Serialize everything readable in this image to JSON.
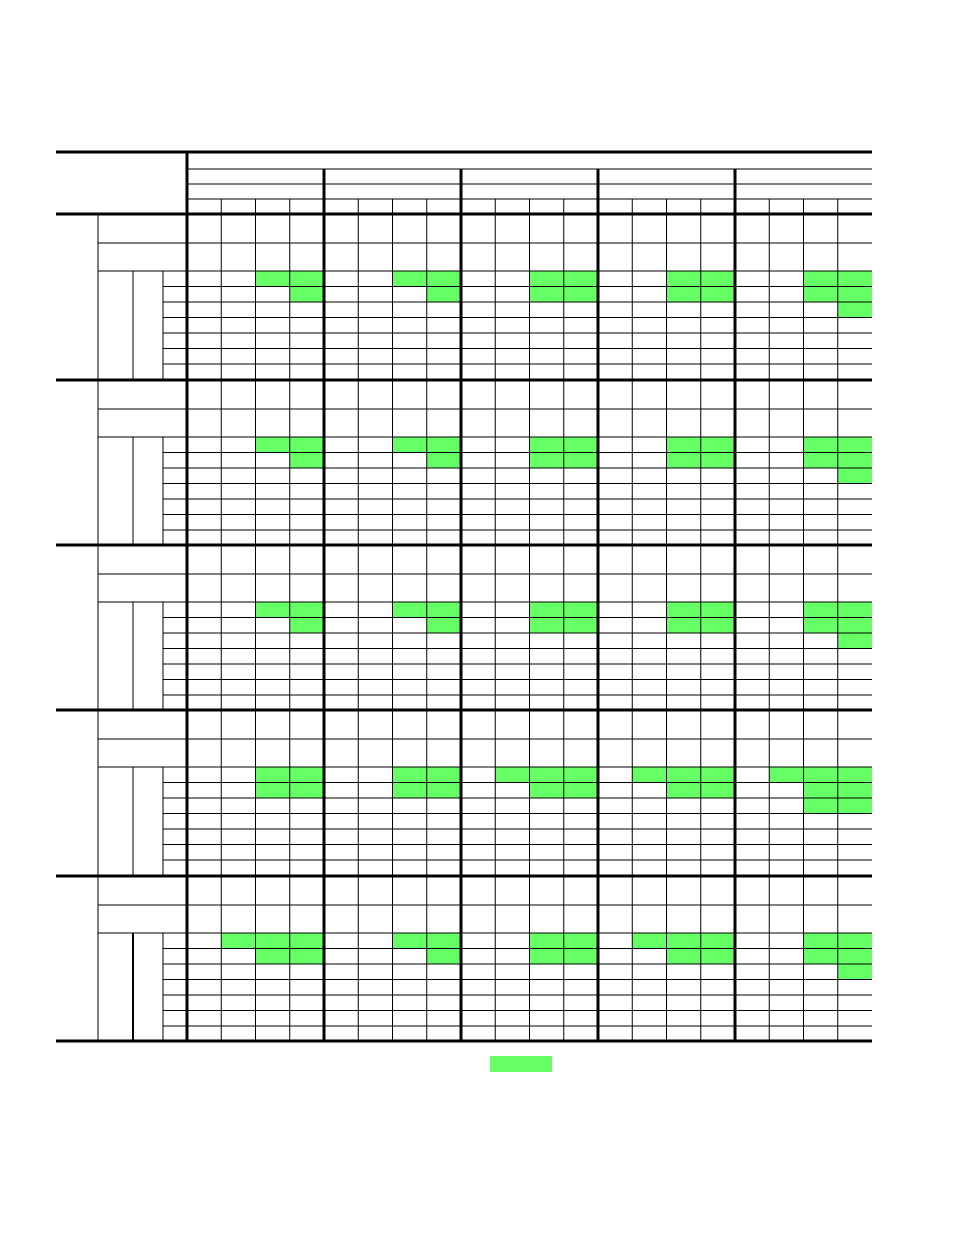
{
  "colors": {
    "line": "#000000",
    "highlight": "#66ff66",
    "background": "#ffffff"
  },
  "table": {
    "column_groups": 5,
    "columns_per_group": 4,
    "row_blocks": 5,
    "data_rows_per_block": 7,
    "highlights": [
      [
        [
          false,
          false,
          true,
          true
        ],
        [
          false,
          false,
          true,
          true
        ],
        [
          false,
          false,
          true,
          true
        ],
        [
          false,
          false,
          true,
          true
        ],
        [
          false,
          false,
          true,
          true
        ],
        [
          false,
          false,
          false,
          true
        ],
        [
          false,
          false,
          false,
          true
        ],
        [
          false,
          false,
          true,
          true
        ],
        [
          false,
          false,
          true,
          true
        ],
        [
          false,
          false,
          true,
          true
        ],
        [
          false,
          false,
          false,
          false
        ],
        [
          false,
          false,
          false,
          false
        ],
        [
          false,
          false,
          false,
          false
        ],
        [
          false,
          false,
          false,
          false
        ],
        [
          false,
          false,
          false,
          true
        ]
      ],
      [
        [
          false,
          false,
          true,
          true
        ],
        [
          false,
          false,
          true,
          true
        ],
        [
          false,
          false,
          true,
          true
        ],
        [
          false,
          false,
          true,
          true
        ],
        [
          false,
          false,
          true,
          true
        ],
        [
          false,
          false,
          false,
          true
        ],
        [
          false,
          false,
          false,
          true
        ],
        [
          false,
          false,
          true,
          true
        ],
        [
          false,
          false,
          true,
          true
        ],
        [
          false,
          false,
          true,
          true
        ],
        [
          false,
          false,
          false,
          false
        ],
        [
          false,
          false,
          false,
          false
        ],
        [
          false,
          false,
          false,
          false
        ],
        [
          false,
          false,
          false,
          false
        ],
        [
          false,
          false,
          false,
          true
        ]
      ],
      [
        [
          false,
          false,
          true,
          true
        ],
        [
          false,
          false,
          true,
          true
        ],
        [
          false,
          false,
          true,
          true
        ],
        [
          false,
          false,
          true,
          true
        ],
        [
          false,
          false,
          true,
          true
        ],
        [
          false,
          false,
          false,
          true
        ],
        [
          false,
          false,
          false,
          true
        ],
        [
          false,
          false,
          true,
          true
        ],
        [
          false,
          false,
          true,
          true
        ],
        [
          false,
          false,
          true,
          true
        ],
        [
          false,
          false,
          false,
          false
        ],
        [
          false,
          false,
          false,
          false
        ],
        [
          false,
          false,
          false,
          false
        ],
        [
          false,
          false,
          false,
          false
        ],
        [
          false,
          false,
          false,
          true
        ]
      ],
      [
        [
          false,
          false,
          true,
          true
        ],
        [
          false,
          false,
          true,
          true
        ],
        [
          false,
          true,
          true,
          true
        ],
        [
          false,
          true,
          true,
          true
        ],
        [
          false,
          true,
          true,
          true
        ],
        [
          false,
          false,
          true,
          true
        ],
        [
          false,
          false,
          true,
          true
        ],
        [
          false,
          false,
          true,
          true
        ],
        [
          false,
          false,
          true,
          true
        ],
        [
          false,
          false,
          true,
          true
        ],
        [
          false,
          false,
          false,
          false
        ],
        [
          false,
          false,
          false,
          false
        ],
        [
          false,
          false,
          false,
          false
        ],
        [
          false,
          false,
          false,
          false
        ],
        [
          false,
          false,
          true,
          true
        ]
      ],
      [
        [
          false,
          true,
          true,
          true
        ],
        [
          false,
          false,
          true,
          true
        ],
        [
          false,
          false,
          true,
          true
        ],
        [
          false,
          true,
          true,
          true
        ],
        [
          false,
          false,
          true,
          true
        ],
        [
          false,
          false,
          true,
          true
        ],
        [
          false,
          false,
          false,
          true
        ],
        [
          false,
          false,
          true,
          true
        ],
        [
          false,
          false,
          true,
          true
        ],
        [
          false,
          false,
          true,
          true
        ],
        [
          false,
          false,
          false,
          false
        ],
        [
          false,
          false,
          false,
          false
        ],
        [
          false,
          false,
          false,
          false
        ],
        [
          false,
          false,
          false,
          false
        ],
        [
          false,
          false,
          false,
          true
        ]
      ]
    ]
  },
  "legend": {
    "swatch_color": "#66ff66"
  }
}
